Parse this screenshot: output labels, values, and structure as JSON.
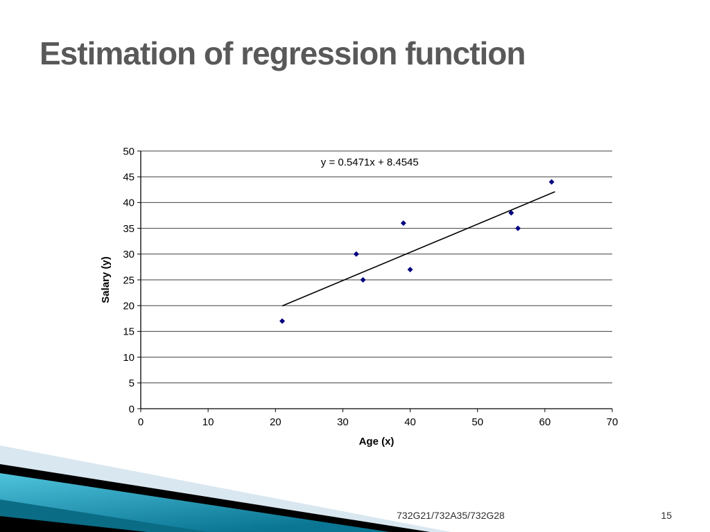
{
  "slide": {
    "title": "Estimation of regression function",
    "footer": "732G21/732A35/732G28",
    "page_number": "15",
    "colors": {
      "title_gray": "#595959",
      "pale_blue": "#d9e7f0",
      "black": "#000000",
      "teal_light": "#4fc3dc",
      "teal_deep": "#0a7694",
      "teal_dark": "#0b6c86"
    }
  },
  "chart_data": {
    "type": "scatter",
    "title": "",
    "equation_label": "y = 0.5471x + 8.4545",
    "xlabel": "Age (x)",
    "ylabel": "Salary (y)",
    "xlim": [
      0,
      70
    ],
    "ylim": [
      0,
      50
    ],
    "xtick_step": 10,
    "ytick_step": 5,
    "grid": true,
    "marker_color": "#000080",
    "line_color": "#000000",
    "points": [
      [
        21,
        17
      ],
      [
        32,
        30
      ],
      [
        33,
        25
      ],
      [
        39,
        36
      ],
      [
        40,
        27
      ],
      [
        55,
        38
      ],
      [
        56,
        35
      ],
      [
        61,
        44
      ]
    ],
    "trendline": {
      "slope": 0.5471,
      "intercept": 8.4545,
      "x_start": 21,
      "x_end": 61.5
    }
  }
}
